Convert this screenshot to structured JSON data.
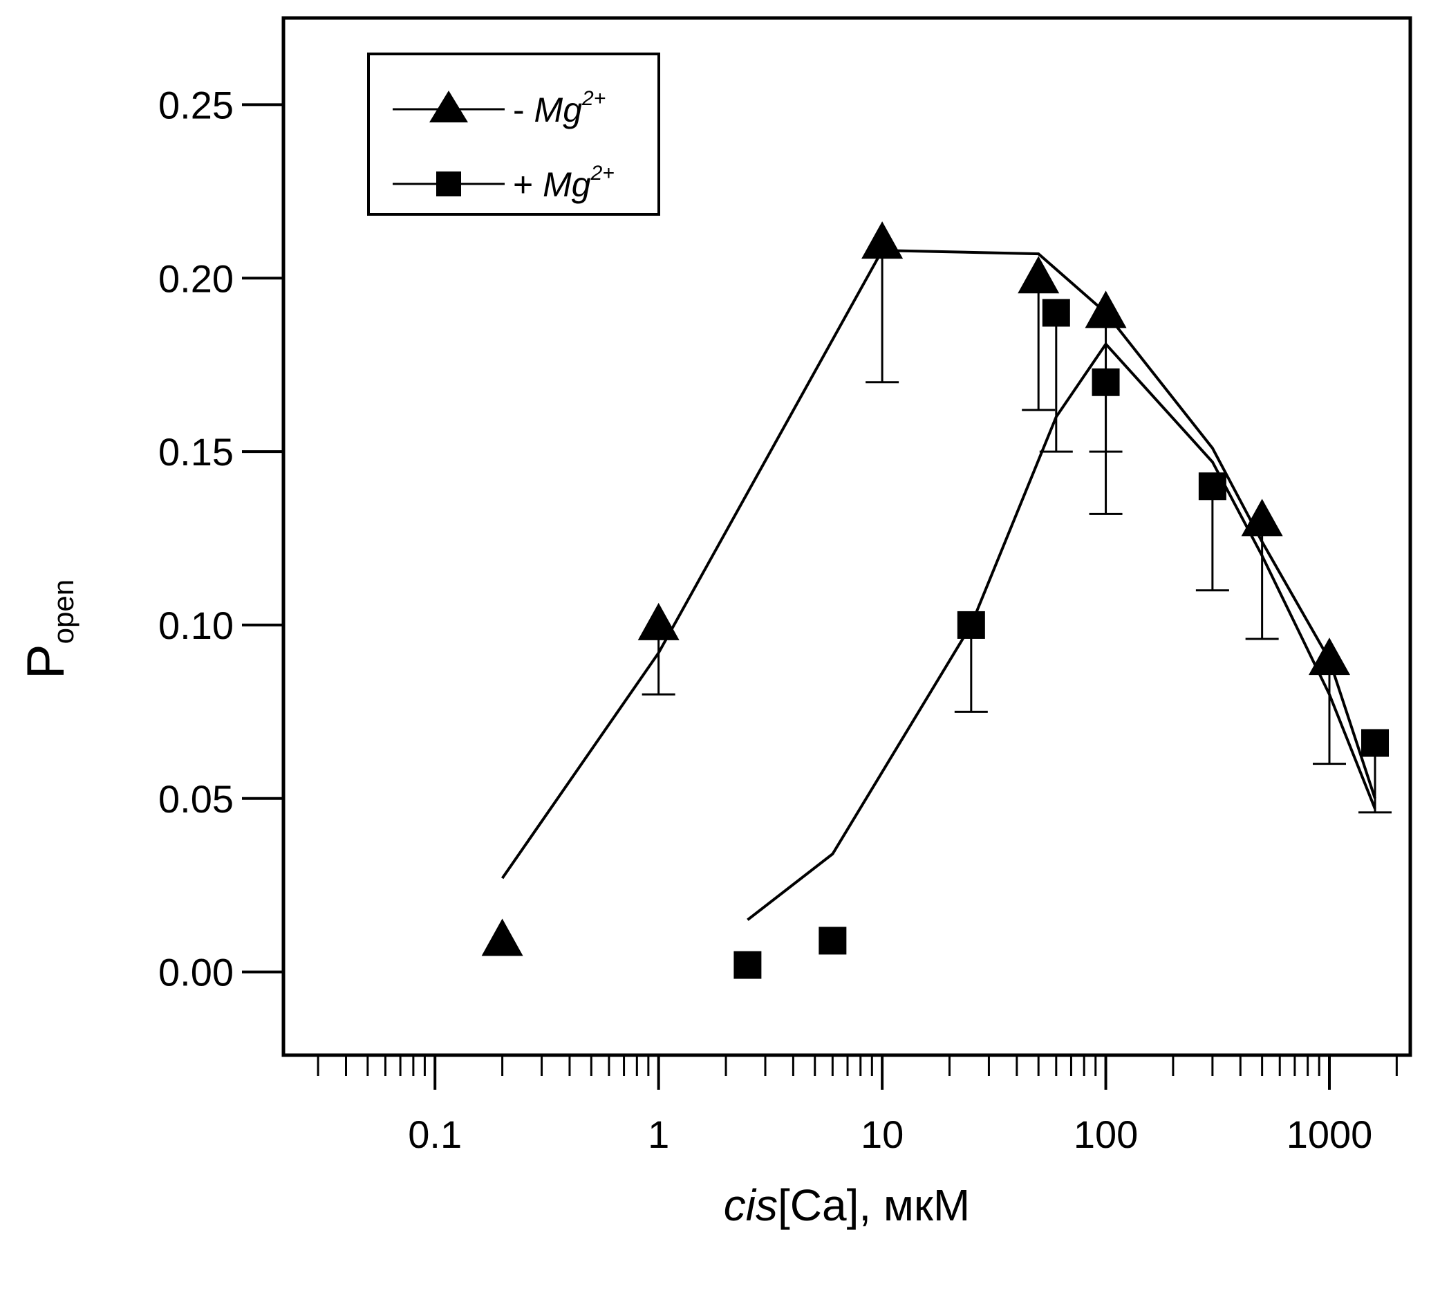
{
  "chart_data": {
    "type": "scatter",
    "xscale": "log",
    "xlim": [
      0.021,
      2300
    ],
    "ylim": [
      -0.024,
      0.275
    ],
    "x_ticks": [
      0.1,
      1,
      10,
      100,
      1000
    ],
    "x_tick_labels": [
      "0.1",
      "1",
      "10",
      "100",
      "1000"
    ],
    "y_ticks": [
      0.0,
      0.05,
      0.1,
      0.15,
      0.2,
      0.25
    ],
    "y_tick_labels": [
      "0.00",
      "0.05",
      "0.10",
      "0.15",
      "0.20",
      "0.25"
    ],
    "xlabel_italic": "cis",
    "xlabel_rest": "[Ca], мкМ",
    "ylabel_main": "P",
    "ylabel_sub": "open",
    "legend_position": "top-left",
    "series": [
      {
        "name": "- Mg",
        "name_prefix": "- ",
        "name_base": "Mg",
        "name_sup": "2+",
        "marker": "triangle",
        "color": "#000000",
        "points": [
          {
            "x": 0.2,
            "y": 0.009
          },
          {
            "x": 1,
            "y": 0.1,
            "err_low": 0.08
          },
          {
            "x": 10,
            "y": 0.21,
            "err_low": 0.17
          },
          {
            "x": 50,
            "y": 0.2,
            "err_low": 0.162
          },
          {
            "x": 100,
            "y": 0.19,
            "err_low": 0.15
          },
          {
            "x": 500,
            "y": 0.13,
            "err_low": 0.096
          },
          {
            "x": 1000,
            "y": 0.09,
            "err_low": 0.06
          }
        ],
        "fit_line": [
          {
            "x": 0.2,
            "y": 0.027
          },
          {
            "x": 1,
            "y": 0.092
          },
          {
            "x": 10,
            "y": 0.208
          },
          {
            "x": 50,
            "y": 0.207
          },
          {
            "x": 100,
            "y": 0.19
          },
          {
            "x": 300,
            "y": 0.151
          },
          {
            "x": 500,
            "y": 0.124
          },
          {
            "x": 1000,
            "y": 0.09
          },
          {
            "x": 1600,
            "y": 0.05
          }
        ]
      },
      {
        "name": "+ Mg",
        "name_prefix": "+ ",
        "name_base": "Mg",
        "name_sup": "2+",
        "marker": "square",
        "color": "#000000",
        "points": [
          {
            "x": 2.5,
            "y": 0.002
          },
          {
            "x": 6,
            "y": 0.009
          },
          {
            "x": 25,
            "y": 0.1,
            "err_low": 0.075
          },
          {
            "x": 60,
            "y": 0.19,
            "err_low": 0.15
          },
          {
            "x": 100,
            "y": 0.17,
            "err_low": 0.132
          },
          {
            "x": 300,
            "y": 0.14,
            "err_low": 0.11
          },
          {
            "x": 1600,
            "y": 0.066,
            "err_low": 0.046
          }
        ],
        "fit_line": [
          {
            "x": 2.5,
            "y": 0.015
          },
          {
            "x": 6,
            "y": 0.034
          },
          {
            "x": 25,
            "y": 0.1
          },
          {
            "x": 60,
            "y": 0.16
          },
          {
            "x": 100,
            "y": 0.181
          },
          {
            "x": 300,
            "y": 0.147
          },
          {
            "x": 500,
            "y": 0.12
          },
          {
            "x": 1000,
            "y": 0.08
          },
          {
            "x": 1600,
            "y": 0.047
          }
        ]
      }
    ]
  }
}
